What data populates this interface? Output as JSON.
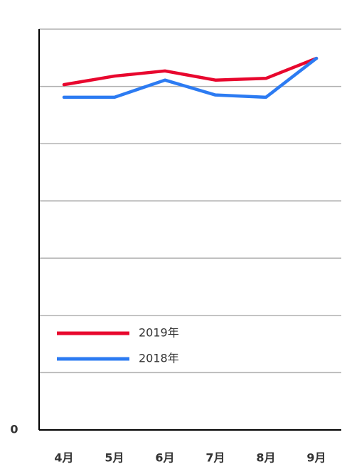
{
  "chart_data": {
    "type": "line",
    "categories": [
      "4月",
      "5月",
      "6月",
      "7月",
      "8月",
      "9月"
    ],
    "series": [
      {
        "name": "2019年",
        "color": "#e8072e",
        "values": [
          6.03,
          6.18,
          6.27,
          6.11,
          6.14,
          6.49
        ]
      },
      {
        "name": "2018年",
        "color": "#2c7bf2",
        "values": [
          5.81,
          5.81,
          6.11,
          5.85,
          5.81,
          6.49
        ]
      }
    ],
    "ylim": [
      0,
      7
    ],
    "yticks": [
      0
    ],
    "gridlines": [
      1,
      2,
      3,
      4,
      5,
      6,
      7
    ],
    "grid": true,
    "legend": "lower left"
  }
}
